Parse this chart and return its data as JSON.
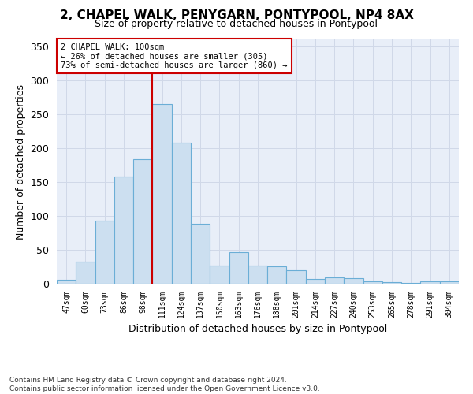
{
  "title": "2, CHAPEL WALK, PENYGARN, PONTYPOOL, NP4 8AX",
  "subtitle": "Size of property relative to detached houses in Pontypool",
  "xlabel": "Distribution of detached houses by size in Pontypool",
  "ylabel": "Number of detached properties",
  "categories": [
    "47sqm",
    "60sqm",
    "73sqm",
    "86sqm",
    "98sqm",
    "111sqm",
    "124sqm",
    "137sqm",
    "150sqm",
    "163sqm",
    "176sqm",
    "188sqm",
    "201sqm",
    "214sqm",
    "227sqm",
    "240sqm",
    "253sqm",
    "265sqm",
    "278sqm",
    "291sqm",
    "304sqm"
  ],
  "values": [
    6,
    32,
    93,
    158,
    184,
    265,
    208,
    88,
    27,
    46,
    27,
    26,
    20,
    7,
    9,
    8,
    4,
    2,
    1,
    3,
    3
  ],
  "bar_color": "#ccdff0",
  "bar_edge_color": "#6baed6",
  "grid_color": "#d0d8e8",
  "background_color": "#e8eef8",
  "vline_x": 4.5,
  "vline_color": "#cc0000",
  "annotation_text": "2 CHAPEL WALK: 100sqm\n← 26% of detached houses are smaller (305)\n73% of semi-detached houses are larger (860) →",
  "annotation_box_color": "#cc0000",
  "footer_line1": "Contains HM Land Registry data © Crown copyright and database right 2024.",
  "footer_line2": "Contains public sector information licensed under the Open Government Licence v3.0.",
  "ylim": [
    0,
    360
  ],
  "yticks": [
    0,
    50,
    100,
    150,
    200,
    250,
    300,
    350
  ]
}
